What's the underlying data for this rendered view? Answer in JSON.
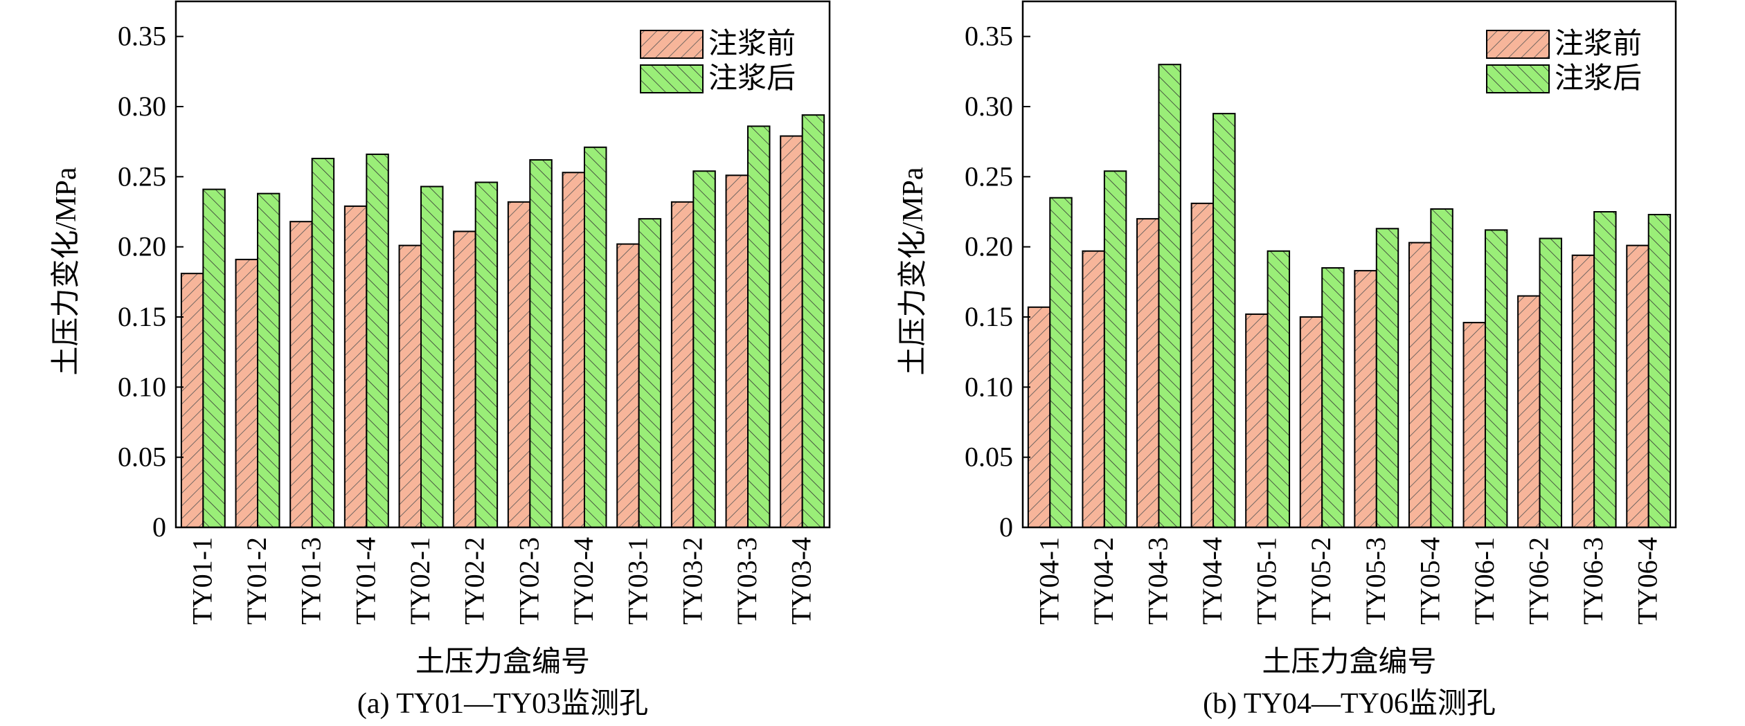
{
  "legend_labels": [
    "注浆前",
    "注浆后"
  ],
  "colors": {
    "before": "#F7B59A",
    "after": "#9AEE78",
    "stroke": "#000000"
  },
  "chart_data": [
    {
      "type": "bar",
      "caption": "(a) TY01—TY03监测孔",
      "xlabel": "土压力盒编号",
      "ylabel": "土压力变化/MPa",
      "ylim": [
        0,
        0.375
      ],
      "yticks": [
        0,
        0.05,
        0.1,
        0.15,
        0.2,
        0.25,
        0.3,
        0.35
      ],
      "ytick_labels": [
        "0",
        "0.05",
        "0.10",
        "0.15",
        "0.20",
        "0.25",
        "0.30",
        "0.35"
      ],
      "legend_position": "top-right",
      "categories": [
        "TY01-1",
        "TY01-2",
        "TY01-3",
        "TY01-4",
        "TY02-1",
        "TY02-2",
        "TY02-3",
        "TY02-4",
        "TY03-1",
        "TY03-2",
        "TY03-3",
        "TY03-4"
      ],
      "series": [
        {
          "name": "注浆前",
          "values": [
            0.181,
            0.191,
            0.218,
            0.229,
            0.201,
            0.211,
            0.232,
            0.253,
            0.202,
            0.232,
            0.251,
            0.279
          ]
        },
        {
          "name": "注浆后",
          "values": [
            0.241,
            0.238,
            0.263,
            0.266,
            0.243,
            0.246,
            0.262,
            0.271,
            0.22,
            0.254,
            0.286,
            0.294
          ]
        }
      ]
    },
    {
      "type": "bar",
      "caption": "(b) TY04—TY06监测孔",
      "xlabel": "土压力盒编号",
      "ylabel": "土压力变化/MPa",
      "ylim": [
        0,
        0.375
      ],
      "yticks": [
        0,
        0.05,
        0.1,
        0.15,
        0.2,
        0.25,
        0.3,
        0.35
      ],
      "ytick_labels": [
        "0",
        "0.05",
        "0.10",
        "0.15",
        "0.20",
        "0.25",
        "0.30",
        "0.35"
      ],
      "legend_position": "top-right",
      "categories": [
        "TY04-1",
        "TY04-2",
        "TY04-3",
        "TY04-4",
        "TY05-1",
        "TY05-2",
        "TY05-3",
        "TY05-4",
        "TY06-1",
        "TY06-2",
        "TY06-3",
        "TY06-4"
      ],
      "series": [
        {
          "name": "注浆前",
          "values": [
            0.157,
            0.197,
            0.22,
            0.231,
            0.152,
            0.15,
            0.183,
            0.203,
            0.146,
            0.165,
            0.194,
            0.201
          ]
        },
        {
          "name": "注浆后",
          "values": [
            0.235,
            0.254,
            0.33,
            0.295,
            0.197,
            0.185,
            0.213,
            0.227,
            0.212,
            0.206,
            0.225,
            0.223
          ]
        }
      ]
    }
  ]
}
